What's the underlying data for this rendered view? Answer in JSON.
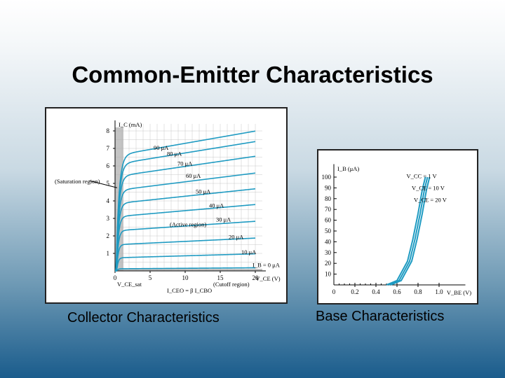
{
  "slide": {
    "title": "Common-Emitter Characteristics",
    "left_caption": "Collector Characteristics",
    "right_caption": "Base Characteristics"
  },
  "colors": {
    "curve": "#1f9bc2",
    "saturation_shade": "#aaaaaa"
  },
  "chart_data": [
    {
      "type": "line",
      "xlabel": "V_CE (V)",
      "ylabel": "I_C (mA)",
      "xlim": [
        0,
        20
      ],
      "ylim": [
        0,
        8
      ],
      "xticks": [
        "0",
        "5",
        "10",
        "15",
        "20"
      ],
      "yticks": [
        "1",
        "2",
        "3",
        "4",
        "5",
        "6",
        "7",
        "8"
      ],
      "grid": true,
      "series": [
        {
          "name": "90 μA",
          "sat": 6.6
        },
        {
          "name": "80 μA",
          "sat": 6.1
        },
        {
          "name": "70 μA",
          "sat": 5.4
        },
        {
          "name": "60 μA",
          "sat": 4.6
        },
        {
          "name": "50 μA",
          "sat": 3.85
        },
        {
          "name": "40 μA",
          "sat": 3.1
        },
        {
          "name": "30 μA",
          "sat": 2.3
        },
        {
          "name": "20 μA",
          "sat": 1.5
        },
        {
          "name": "10 μA",
          "sat": 0.75
        },
        {
          "name": "I_B = 0 μA",
          "sat": 0.12
        }
      ],
      "annotations": {
        "saturation": "(Saturation region)",
        "active": "(Active region)",
        "cutoff": "(Cutoff region)",
        "vcesat": "V_CE_sat",
        "iceo": "I_CEO = β I_CBO"
      }
    },
    {
      "type": "line",
      "xlabel": "V_BE (V)",
      "ylabel": "I_B (μA)",
      "xlim": [
        0,
        1.0
      ],
      "ylim": [
        0,
        100
      ],
      "xticks": [
        "0",
        "0.2",
        "0.4",
        "0.6",
        "0.8",
        "1.0"
      ],
      "yticks": [
        "10",
        "20",
        "30",
        "40",
        "50",
        "60",
        "70",
        "80",
        "90",
        "100"
      ],
      "grid": false,
      "series": [
        {
          "name": "V_CC = 1 V",
          "x": [
            0.5,
            0.6,
            0.7,
            0.75,
            0.8,
            0.84,
            0.87
          ],
          "y": [
            0,
            4,
            22,
            42,
            66,
            88,
            100
          ]
        },
        {
          "name": "V_CE = 10 V",
          "x": [
            0.52,
            0.62,
            0.72,
            0.77,
            0.82,
            0.86,
            0.89
          ],
          "y": [
            0,
            4,
            22,
            42,
            66,
            88,
            100
          ]
        },
        {
          "name": "V_CE = 20 V",
          "x": [
            0.54,
            0.64,
            0.74,
            0.79,
            0.84,
            0.88,
            0.91
          ],
          "y": [
            0,
            4,
            22,
            42,
            66,
            88,
            100
          ]
        }
      ]
    }
  ]
}
